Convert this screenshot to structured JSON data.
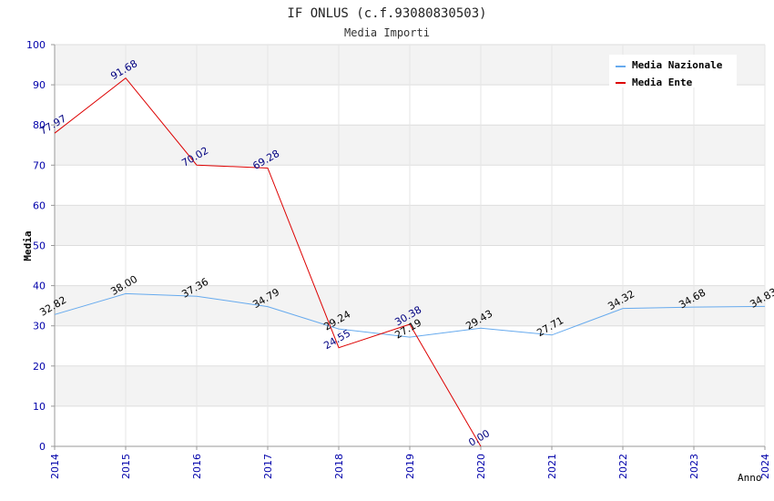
{
  "chart_data": {
    "type": "line",
    "title": "IF ONLUS (c.f.93080830503)",
    "subtitle": "Media Importi",
    "xlabel": "Anno",
    "ylabel": "Media",
    "ylim": [
      0,
      100
    ],
    "yticks": [
      "0",
      "10",
      "20",
      "30",
      "40",
      "50",
      "60",
      "70",
      "80",
      "90",
      "100"
    ],
    "x": [
      "2014",
      "2015",
      "2016",
      "2017",
      "2018",
      "2019",
      "2020",
      "2021",
      "2022",
      "2023",
      "2024"
    ],
    "grid": true,
    "legend_position": "top-right",
    "series": [
      {
        "name": "Media Nazionale",
        "color": "#66aaee",
        "label_color": "#000000",
        "values": [
          32.82,
          38.0,
          37.36,
          34.79,
          29.24,
          27.19,
          29.43,
          27.71,
          34.32,
          34.68,
          34.83
        ],
        "labels": [
          "32.82",
          "38.00",
          "37.36",
          "34.79",
          "29.24",
          "27.19",
          "29.43",
          "27.71",
          "34.32",
          "34.68",
          "34.83"
        ]
      },
      {
        "name": "Media Ente",
        "color": "#dd0000",
        "label_color": "#000080",
        "values": [
          77.97,
          91.68,
          70.02,
          69.28,
          24.55,
          30.38,
          0.0,
          null,
          null,
          null,
          null
        ],
        "labels": [
          "77.97",
          "91.68",
          "70.02",
          "69.28",
          "24.55",
          "30.38",
          "0.00",
          null,
          null,
          null,
          null
        ]
      }
    ]
  }
}
